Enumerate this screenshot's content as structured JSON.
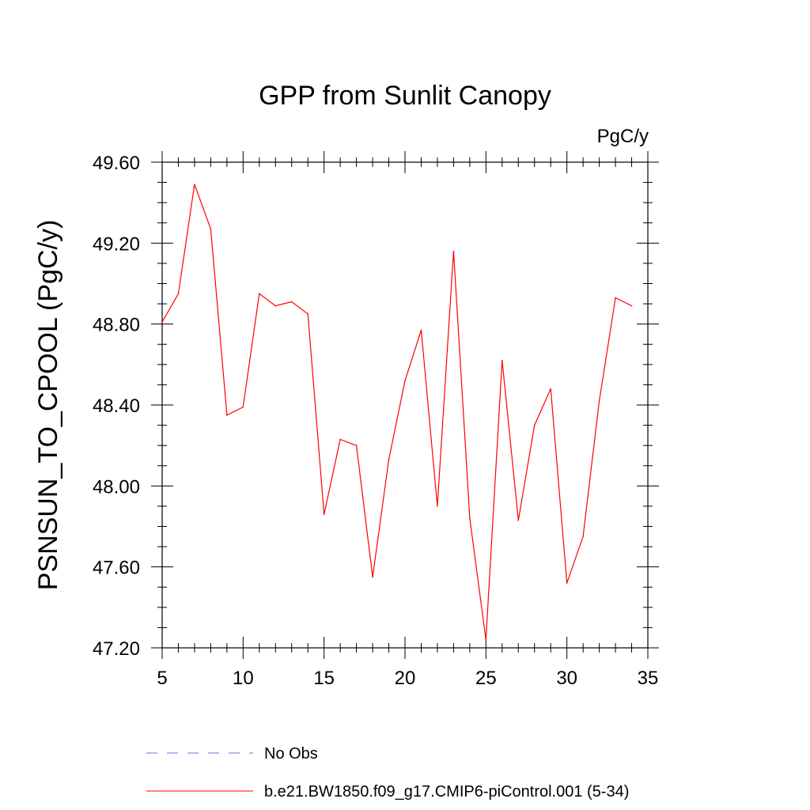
{
  "chart_data": {
    "type": "line",
    "title": "GPP from Sunlit Canopy",
    "units": "PgC/y",
    "ylabel": "PSNSUN_TO_CPOOL  (PgC/y)",
    "xlabel": "",
    "xlim": [
      5,
      35
    ],
    "ylim": [
      47.2,
      49.6
    ],
    "x_ticks": [
      5,
      10,
      15,
      20,
      25,
      30,
      35
    ],
    "x_tick_labels": [
      "5",
      "10",
      "15",
      "20",
      "25",
      "30",
      "35"
    ],
    "y_ticks": [
      47.2,
      47.6,
      48.0,
      48.4,
      48.8,
      49.2,
      49.6
    ],
    "y_tick_labels": [
      "47.20",
      "47.60",
      "48.00",
      "48.40",
      "48.80",
      "49.20",
      "49.60"
    ],
    "grid": false,
    "legend_position": "bottom",
    "series": [
      {
        "name": "b.e21.BW1850.f09_g17.CMIP6-piControl.001 (5-34)",
        "color": "#ff0000",
        "style": "solid",
        "x": [
          5,
          6,
          7,
          8,
          9,
          10,
          11,
          12,
          13,
          14,
          15,
          16,
          17,
          18,
          19,
          20,
          21,
          22,
          23,
          24,
          25,
          26,
          27,
          28,
          29,
          30,
          31,
          32,
          33,
          34
        ],
        "y": [
          48.81,
          48.95,
          49.49,
          49.27,
          48.35,
          48.39,
          48.95,
          48.89,
          48.91,
          48.85,
          47.86,
          48.23,
          48.2,
          47.55,
          48.13,
          48.52,
          48.77,
          47.9,
          49.16,
          47.84,
          47.24,
          48.62,
          47.83,
          48.3,
          48.48,
          47.52,
          47.75,
          48.42,
          48.93,
          48.89
        ]
      }
    ],
    "legend": [
      {
        "label": "No Obs",
        "color": "#7b68ee",
        "style": "dashed"
      },
      {
        "label": "b.e21.BW1850.f09_g17.CMIP6-piControl.001 (5-34)",
        "color": "#ff0000",
        "style": "solid"
      }
    ]
  }
}
